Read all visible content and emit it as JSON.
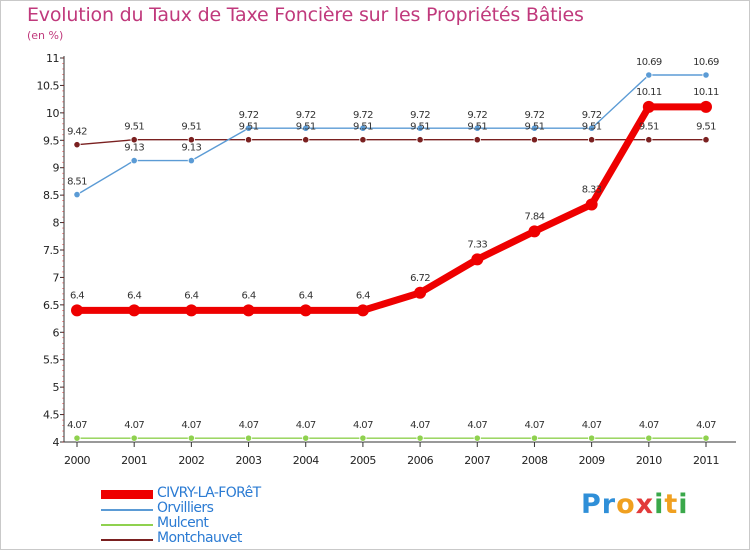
{
  "title": "Evolution du Taux de Taxe Foncière sur les Propriétés Bâties",
  "subtitle": "(en %)",
  "brand": "Proxiti",
  "colors": {
    "title": "#c0397c",
    "legend_text": "#2b7bd3",
    "axis": "#333333",
    "grid_tick": "#cc0000"
  },
  "chart_data": {
    "type": "line",
    "title": "Evolution du Taux de Taxe Foncière sur les Propriétés Bâties",
    "ylabel": "(en %)",
    "xlabel": "",
    "ylim": [
      4,
      11
    ],
    "yticks": [
      4,
      4.5,
      5,
      5.5,
      6,
      6.5,
      7,
      7.5,
      8,
      8.5,
      9,
      9.5,
      10,
      10.5,
      11
    ],
    "ytick_labels": [
      "4",
      "4.5",
      "5",
      "5.5",
      "6",
      "6.5",
      "7",
      "7.5",
      "8",
      "8.5",
      "9",
      "9.5",
      "10",
      "10.5",
      "11"
    ],
    "categories": [
      "2000",
      "2001",
      "2002",
      "2003",
      "2004",
      "2005",
      "2006",
      "2007",
      "2008",
      "2009",
      "2010",
      "2011"
    ],
    "legend_position": "bottom-left",
    "series": [
      {
        "name": "CIVRY-LA-FORêT",
        "color": "#ee0000",
        "emphasis": true,
        "values": [
          6.4,
          6.4,
          6.4,
          6.4,
          6.4,
          6.4,
          6.72,
          7.33,
          7.84,
          8.33,
          10.11,
          10.11
        ],
        "labels": [
          "6.4",
          "6.4",
          "6.4",
          "6.4",
          "6.4",
          "6.4",
          "6.72",
          "7.33",
          "7.84",
          "8.33",
          "10.11",
          "10.11"
        ]
      },
      {
        "name": "Orvilliers",
        "color": "#5b9bd5",
        "emphasis": false,
        "values": [
          8.51,
          9.13,
          9.13,
          9.72,
          9.72,
          9.72,
          9.72,
          9.72,
          9.72,
          9.72,
          10.69,
          10.69
        ],
        "labels": [
          "8.51",
          "9.13",
          "9.13",
          "9.72",
          "9.72",
          "9.72",
          "9.72",
          "9.72",
          "9.72",
          "9.72",
          "10.69",
          "10.69"
        ]
      },
      {
        "name": "Mulcent",
        "color": "#8fd14f",
        "emphasis": false,
        "values": [
          4.07,
          4.07,
          4.07,
          4.07,
          4.07,
          4.07,
          4.07,
          4.07,
          4.07,
          4.07,
          4.07,
          4.07
        ],
        "labels": [
          "4.07",
          "4.07",
          "4.07",
          "4.07",
          "4.07",
          "4.07",
          "4.07",
          "4.07",
          "4.07",
          "4.07",
          "4.07",
          "4.07"
        ]
      },
      {
        "name": "Montchauvet",
        "color": "#7a2020",
        "emphasis": false,
        "values": [
          9.42,
          9.51,
          9.51,
          9.51,
          9.51,
          9.51,
          9.51,
          9.51,
          9.51,
          9.51,
          9.51,
          9.51
        ],
        "labels": [
          "9.42",
          "9.51",
          "9.51",
          "9.51",
          "9.51",
          "9.51",
          "9.51",
          "9.51",
          "9.51",
          "9.51",
          "9.51",
          "9.51"
        ]
      }
    ]
  }
}
